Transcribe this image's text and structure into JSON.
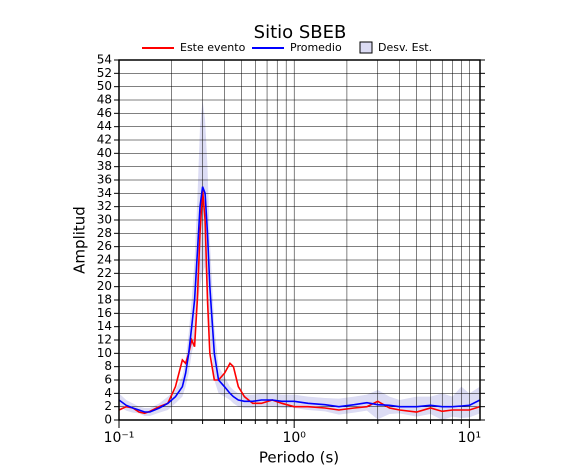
{
  "chart_data": {
    "type": "line",
    "title": "Sitio SBEB",
    "x_label": "Periodo (s)",
    "y_label": "Amplitud",
    "x_scale": "log",
    "grid": true,
    "xlim": [
      0.1,
      11.5
    ],
    "ylim": [
      0,
      54
    ],
    "xticks": [
      {
        "value": 0.1,
        "label": "10⁻¹"
      },
      {
        "value": 1,
        "label": "10⁰"
      },
      {
        "value": 10,
        "label": "10¹"
      }
    ],
    "xminor": [
      0.2,
      0.3,
      0.4,
      0.5,
      0.6,
      0.7,
      0.8,
      0.9,
      2,
      3,
      4,
      5,
      6,
      7,
      8,
      9
    ],
    "yticks": [
      0,
      2,
      4,
      6,
      8,
      10,
      12,
      14,
      16,
      18,
      20,
      22,
      24,
      26,
      28,
      30,
      32,
      34,
      36,
      38,
      40,
      42,
      44,
      46,
      48,
      50,
      52,
      54
    ],
    "x": [
      0.1,
      0.11,
      0.12,
      0.13,
      0.14,
      0.15,
      0.17,
      0.19,
      0.21,
      0.23,
      0.24,
      0.25,
      0.26,
      0.27,
      0.28,
      0.29,
      0.3,
      0.31,
      0.32,
      0.33,
      0.35,
      0.37,
      0.4,
      0.43,
      0.45,
      0.48,
      0.52,
      0.58,
      0.65,
      0.75,
      0.85,
      1.0,
      1.2,
      1.5,
      1.8,
      2.2,
      2.6,
      3.0,
      3.5,
      4.0,
      5,
      6,
      7,
      8,
      9,
      10,
      11.5
    ],
    "series": [
      {
        "name": "Este evento",
        "color": "#ff0000",
        "values": [
          1.5,
          2,
          1.8,
          1.2,
          1,
          1.3,
          2,
          2.5,
          5,
          9,
          8.5,
          10,
          12,
          11,
          18,
          28,
          34.5,
          30,
          18,
          10,
          6,
          6,
          7,
          8.5,
          8,
          5,
          3.5,
          2.5,
          2.5,
          3,
          2.5,
          2,
          2,
          1.8,
          1.5,
          1.8,
          2,
          2.8,
          1.8,
          1.5,
          1.2,
          1.8,
          1.3,
          1.5,
          1.5,
          1.5,
          2
        ]
      },
      {
        "name": "Promedio",
        "color": "#0000ff",
        "values": [
          3,
          2.2,
          1.8,
          1.5,
          1.2,
          1.2,
          1.8,
          2.5,
          3.5,
          5,
          7,
          10,
          14,
          18,
          25,
          32,
          35,
          34,
          28,
          20,
          10,
          6,
          5,
          4,
          3.5,
          3,
          2.8,
          2.8,
          3,
          3,
          2.8,
          2.8,
          2.5,
          2.3,
          2,
          2.3,
          2.6,
          2.3,
          2.2,
          2,
          2,
          2.2,
          2,
          2,
          2.1,
          2.2,
          3
        ]
      },
      {
        "name": "Desv. Est.",
        "color": "#dcdcf4",
        "upper": [
          4,
          3,
          2.5,
          2,
          1.8,
          1.8,
          2.5,
          3.5,
          4.5,
          6.5,
          9,
          13,
          18,
          24,
          33,
          44,
          48,
          45,
          38,
          27,
          14,
          8,
          6.5,
          5,
          4.5,
          4,
          3.8,
          3.8,
          4,
          4,
          3.8,
          3.8,
          3.5,
          3.3,
          3.2,
          3.5,
          3.8,
          4.5,
          3.5,
          3,
          3.5,
          3.5,
          4,
          3.5,
          5,
          4,
          5
        ],
        "lower": [
          2,
          1.4,
          1.1,
          1,
          0.6,
          0.6,
          1.1,
          1.5,
          2.5,
          3.5,
          5,
          7,
          10,
          12,
          17,
          20,
          22,
          23,
          18,
          13,
          6,
          4,
          3.5,
          3,
          2.5,
          2,
          1.8,
          1.8,
          2,
          2,
          1.8,
          1.8,
          1.5,
          1.3,
          0.8,
          1.1,
          1.4,
          0.1,
          0.9,
          1,
          0.5,
          0.9,
          0,
          0.5,
          0.3,
          0.4,
          1
        ]
      }
    ]
  }
}
